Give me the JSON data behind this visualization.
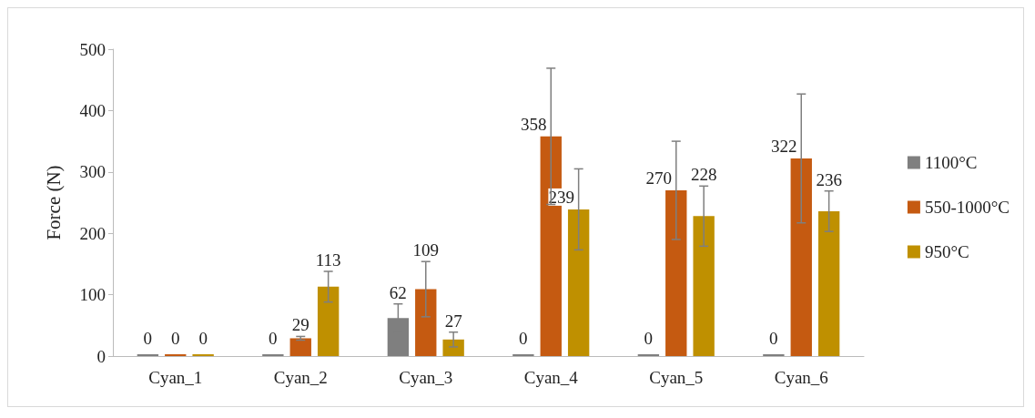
{
  "chart_data": {
    "type": "bar",
    "ylabel": "Force (N)",
    "categories": [
      "Cyan_1",
      "Cyan_2",
      "Cyan_3",
      "Cyan_4",
      "Cyan_5",
      "Cyan_6"
    ],
    "series": [
      {
        "name": "1100°C",
        "color": "#7f7f7f",
        "values": [
          0,
          0,
          62,
          0,
          0,
          0
        ],
        "errors": [
          null,
          null,
          23,
          null,
          null,
          null
        ]
      },
      {
        "name": "550-1000°C",
        "color": "#c55a11",
        "values": [
          0,
          29,
          109,
          358,
          270,
          322
        ],
        "errors": [
          null,
          3,
          45,
          111,
          80,
          105
        ]
      },
      {
        "name": "950°C",
        "color": "#bf9000",
        "values": [
          0,
          113,
          27,
          239,
          228,
          236
        ],
        "errors": [
          null,
          25,
          12,
          66,
          49,
          33
        ]
      }
    ],
    "ylim": [
      0,
      500
    ],
    "yticks": [
      0,
      100,
      200,
      300,
      400,
      500
    ],
    "grid": false,
    "legend": "right",
    "data_labels": true
  }
}
